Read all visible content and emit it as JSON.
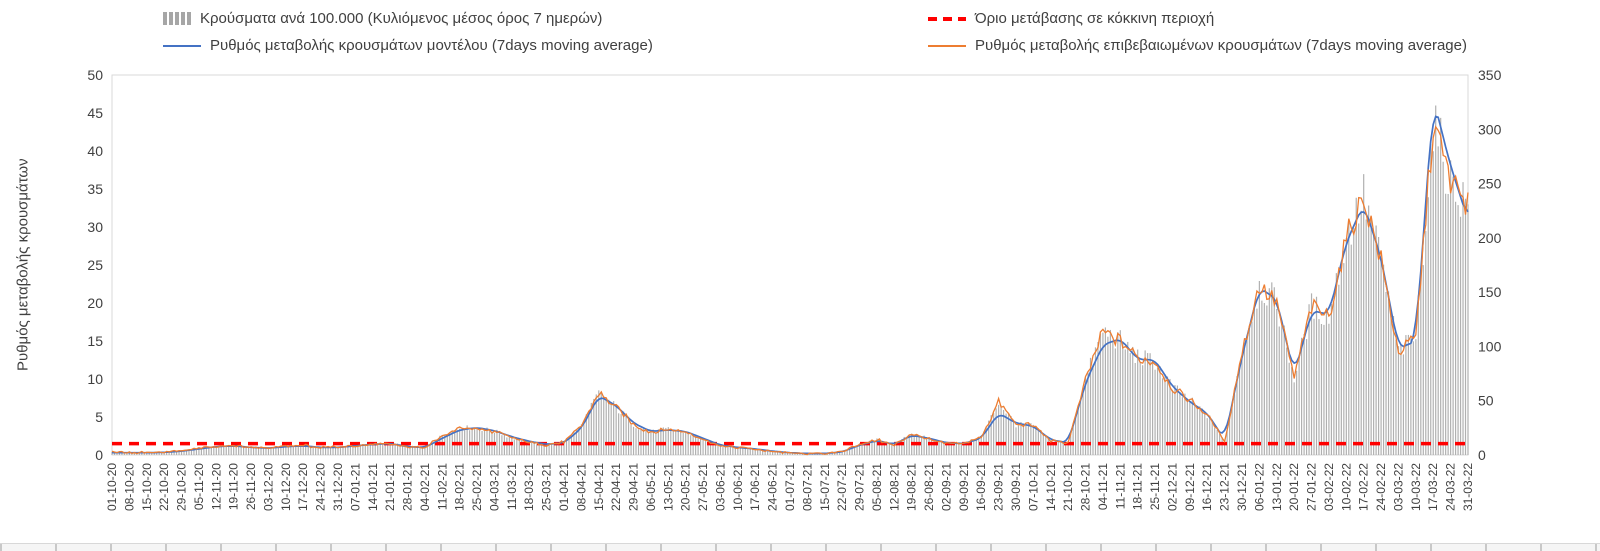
{
  "legend": {
    "bars": "Κρούσματα ανά 100.000 (Κυλιόμενος μέσος όρος 7 ημερών)",
    "threshold": "Όριο μετάβασης σε κόκκινη περιοχή",
    "model": "Ρυθμός μεταβολής κρουσμάτων μοντέλου (7days moving average)",
    "confirmed": "Ρυθμός μεταβολής επιβεβαιωμένων κρουσμάτων (7days moving average)"
  },
  "chart_data": {
    "type": "combo",
    "title": "",
    "legend_position": "top",
    "grid": false,
    "left_axis": {
      "label": "Ρυθμός μεταβολής κρουσμάτων",
      "min": 0,
      "max": 50,
      "ticks": [
        0,
        5,
        10,
        15,
        20,
        25,
        30,
        35,
        40,
        45,
        50
      ]
    },
    "right_axis": {
      "label": "",
      "min": 0,
      "max": 350,
      "ticks": [
        0,
        50,
        100,
        150,
        200,
        250,
        300,
        350
      ]
    },
    "threshold": {
      "label": "Όριο μετάβασης σε κόκκινη περιοχή",
      "value": 1.5,
      "color": "#ff0000",
      "style": "dashed"
    },
    "x_tick_labels": [
      "01-10-20",
      "08-10-20",
      "15-10-20",
      "22-10-20",
      "29-10-20",
      "05-11-20",
      "12-11-20",
      "19-11-20",
      "26-11-20",
      "03-12-20",
      "10-12-20",
      "17-12-20",
      "24-12-20",
      "31-12-20",
      "07-01-21",
      "14-01-21",
      "21-01-21",
      "28-01-21",
      "04-02-21",
      "11-02-21",
      "18-02-21",
      "25-02-21",
      "04-03-21",
      "11-03-21",
      "18-03-21",
      "25-03-21",
      "01-04-21",
      "08-04-21",
      "15-04-21",
      "22-04-21",
      "29-04-21",
      "06-05-21",
      "13-05-21",
      "20-05-21",
      "27-05-21",
      "03-06-21",
      "10-06-21",
      "17-06-21",
      "24-06-21",
      "01-07-21",
      "08-07-21",
      "15-07-21",
      "22-07-21",
      "29-07-21",
      "05-08-21",
      "12-08-21",
      "19-08-21",
      "26-08-21",
      "02-09-21",
      "09-09-21",
      "16-09-21",
      "23-09-21",
      "30-09-21",
      "07-10-21",
      "14-10-21",
      "21-10-21",
      "28-10-21",
      "04-11-21",
      "11-11-21",
      "18-11-21",
      "25-11-21",
      "02-12-21",
      "09-12-21",
      "16-12-21",
      "23-12-21",
      "30-12-21",
      "06-01-22",
      "13-01-22",
      "20-01-22",
      "27-01-22",
      "03-02-22",
      "10-02-22",
      "17-02-22",
      "24-02-22",
      "03-03-22",
      "10-03-22",
      "17-03-22",
      "24-03-22",
      "31-03-22"
    ],
    "series": [
      {
        "name": "Κρούσματα ανά 100.000 (Κυλιόμενος μέσος όρος 7 ημερών)",
        "type": "bar",
        "axis": "right",
        "color": "#b0b0b0",
        "values_weekly": [
          3,
          2,
          2,
          3,
          4,
          6,
          8,
          9,
          7,
          6,
          8,
          9,
          7,
          7,
          9,
          10,
          11,
          8,
          7,
          18,
          25,
          25,
          22,
          16,
          12,
          9,
          12,
          27,
          57,
          44,
          28,
          21,
          24,
          21,
          15,
          8,
          7,
          5,
          3,
          2,
          1,
          1,
          3,
          10,
          14,
          9,
          20,
          15,
          11,
          11,
          16,
          49,
          28,
          27,
          13,
          11,
          69,
          114,
          105,
          90,
          86,
          62,
          50,
          37,
          13,
          95,
          156,
          140,
          71,
          137,
          127,
          200,
          238,
          179,
          95,
          109,
          305,
          252,
          231
        ]
      },
      {
        "name": "Ρυθμός μεταβολής κρουσμάτων μοντέλου (7days moving average)",
        "type": "line",
        "axis": "left",
        "color": "#4472c4",
        "values_weekly": [
          0.3,
          0.3,
          0.3,
          0.35,
          0.5,
          0.8,
          1.1,
          1.2,
          1.0,
          0.9,
          1.1,
          1.2,
          1.0,
          1.0,
          1.2,
          1.4,
          1.5,
          1.1,
          1.0,
          2.2,
          3.3,
          3.6,
          3.2,
          2.4,
          1.8,
          1.4,
          1.6,
          3.5,
          7.8,
          6.5,
          4.2,
          3.1,
          3.3,
          3.1,
          2.2,
          1.3,
          1.0,
          0.8,
          0.5,
          0.3,
          0.2,
          0.2,
          0.4,
          1.3,
          1.9,
          1.4,
          2.6,
          2.2,
          1.6,
          1.5,
          2.2,
          5.5,
          4.2,
          3.8,
          2.0,
          1.6,
          9.5,
          14.5,
          15.3,
          12.6,
          12.5,
          9.0,
          7.0,
          5.5,
          2.0,
          13.0,
          22.0,
          20.5,
          10.5,
          19.0,
          18.5,
          28.0,
          33.0,
          26.0,
          14.0,
          15.0,
          47.0,
          38.0,
          31.0
        ]
      },
      {
        "name": "Ρυθμός μεταβολής επιβεβαιωμένων κρουσμάτων (7days moving average)",
        "type": "line",
        "axis": "left",
        "color": "#ed7d31",
        "values_weekly": [
          0.4,
          0.3,
          0.35,
          0.4,
          0.55,
          0.9,
          1.15,
          1.25,
          1.0,
          0.9,
          1.15,
          1.25,
          1.0,
          1.05,
          1.25,
          1.45,
          1.55,
          1.1,
          1.0,
          2.5,
          3.6,
          3.5,
          3.1,
          2.3,
          1.7,
          1.3,
          1.7,
          3.8,
          8.2,
          6.3,
          4.0,
          3.0,
          3.4,
          3.0,
          2.1,
          1.2,
          0.95,
          0.75,
          0.45,
          0.25,
          0.15,
          0.2,
          0.45,
          1.4,
          2.0,
          1.3,
          2.8,
          2.1,
          1.5,
          1.5,
          2.3,
          7.0,
          4.0,
          3.9,
          1.9,
          1.6,
          9.8,
          16.3,
          15.0,
          12.8,
          12.3,
          8.8,
          7.2,
          5.3,
          1.8,
          13.5,
          22.3,
          20.0,
          10.2,
          19.5,
          18.2,
          28.5,
          34.0,
          25.5,
          13.5,
          15.5,
          43.5,
          36.0,
          33.0
        ]
      }
    ]
  }
}
